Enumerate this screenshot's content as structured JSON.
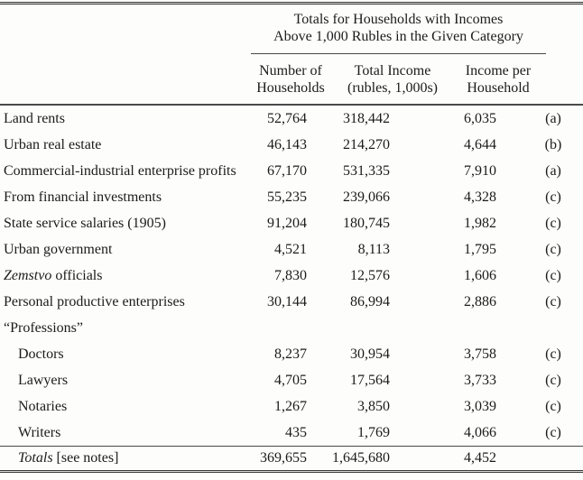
{
  "colors": {
    "background": "#fdfdfc",
    "text": "#1b1b1b",
    "rule": "#3a3a3a"
  },
  "table": {
    "spanning_header": {
      "line1": "Totals for Households with Incomes",
      "line2": "Above 1,000 Rubles in the Given Category"
    },
    "column_headers": [
      {
        "line1": "Number of",
        "line2": "Households"
      },
      {
        "line1": "Total Income",
        "line2": "(rubles, 1,000s)"
      },
      {
        "line1": "Income per",
        "line2": "Household"
      }
    ],
    "rows": [
      {
        "label_parts": [
          {
            "text": "Land rents"
          }
        ],
        "values": [
          "52,764",
          "318,442",
          "6,035"
        ],
        "note": "(a)",
        "indent": 0
      },
      {
        "label_parts": [
          {
            "text": "Urban real estate"
          }
        ],
        "values": [
          "46,143",
          "214,270",
          "4,644"
        ],
        "note": "(b)",
        "indent": 0
      },
      {
        "label_parts": [
          {
            "text": "Commercial-industrial enterprise profits"
          }
        ],
        "values": [
          "67,170",
          "531,335",
          "7,910"
        ],
        "note": "(a)",
        "indent": 0
      },
      {
        "label_parts": [
          {
            "text": "From financial investments"
          }
        ],
        "values": [
          "55,235",
          "239,066",
          "4,328"
        ],
        "note": "(c)",
        "indent": 0
      },
      {
        "label_parts": [
          {
            "text": "State service salaries (1905)"
          }
        ],
        "values": [
          "91,204",
          "180,745",
          "1,982"
        ],
        "note": "(c)",
        "indent": 0
      },
      {
        "label_parts": [
          {
            "text": "Urban government"
          }
        ],
        "values": [
          "4,521",
          "8,113",
          "1,795"
        ],
        "note": "(c)",
        "indent": 0
      },
      {
        "label_parts": [
          {
            "text": "Zemstvo",
            "italic": true
          },
          {
            "text": " officials"
          }
        ],
        "values": [
          "7,830",
          "12,576",
          "1,606"
        ],
        "note": "(c)",
        "indent": 0
      },
      {
        "label_parts": [
          {
            "text": "Personal productive enterprises"
          }
        ],
        "values": [
          "30,144",
          "86,994",
          "2,886"
        ],
        "note": "(c)",
        "indent": 0
      },
      {
        "label_parts": [
          {
            "text": "“Professions”"
          }
        ],
        "values": [
          "",
          "",
          ""
        ],
        "note": "",
        "indent": 0
      },
      {
        "label_parts": [
          {
            "text": "Doctors"
          }
        ],
        "values": [
          "8,237",
          "30,954",
          "3,758"
        ],
        "note": "(c)",
        "indent": 1
      },
      {
        "label_parts": [
          {
            "text": "Lawyers"
          }
        ],
        "values": [
          "4,705",
          "17,564",
          "3,733"
        ],
        "note": "(c)",
        "indent": 1
      },
      {
        "label_parts": [
          {
            "text": "Notaries"
          }
        ],
        "values": [
          "1,267",
          "3,850",
          "3,039"
        ],
        "note": "(c)",
        "indent": 1
      },
      {
        "label_parts": [
          {
            "text": "Writers"
          }
        ],
        "values": [
          "435",
          "1,769",
          "4,066"
        ],
        "note": "(c)",
        "indent": 1
      }
    ],
    "totals_row": {
      "label_parts": [
        {
          "text": "Totals",
          "italic": true
        },
        {
          "text": " [see notes]"
        }
      ],
      "values": [
        "369,655",
        "1,645,680",
        "4,452"
      ],
      "note": "",
      "indent": 1
    }
  }
}
